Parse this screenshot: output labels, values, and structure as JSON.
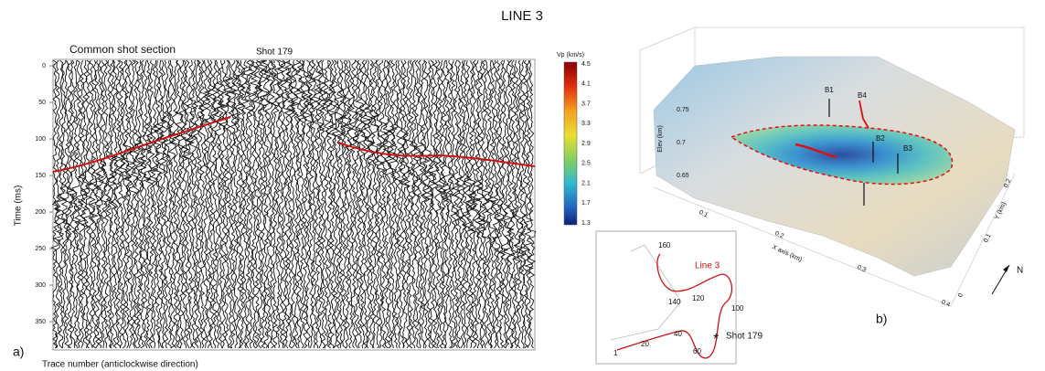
{
  "title": "LINE 3",
  "panel_a": {
    "heading": "Common shot section",
    "shot_label": "Shot 179",
    "shot_marker": "v",
    "y_axis_label": "Time (ms)",
    "y_ticks": [
      "0",
      "50",
      "100",
      "150",
      "200",
      "250",
      "300",
      "350"
    ],
    "panel_label": "a)",
    "x_axis_label": "Trace number (anticlockwise direction)"
  },
  "colorbar": {
    "label": "Vp (km/s)",
    "ticks": [
      "4.5",
      "4.1",
      "3.7",
      "3.3",
      "2.9",
      "2.5",
      "2.1",
      "1.7",
      "1.3"
    ]
  },
  "panel_b": {
    "labels": [
      "B1",
      "B4",
      "B2",
      "B3"
    ],
    "z_axis_label": "Elev (km)",
    "z_ticks": [
      "0.75",
      "0.7",
      "0.65"
    ],
    "x_axis_label": "X axis (km)",
    "x_ticks": [
      "0.1",
      "0.2",
      "0.3",
      "0.4"
    ],
    "y_axis_label": "Y (km)",
    "y_ticks": [
      "0",
      "0.1",
      "0.2"
    ],
    "panel_label": "b)",
    "north": "N"
  },
  "inset": {
    "trace_labels": [
      "160",
      "140",
      "120",
      "100",
      "40",
      "20",
      "1",
      "60"
    ],
    "line_label": "Line 3",
    "shot_label": "Shot 179",
    "shot_marker": "*"
  }
}
